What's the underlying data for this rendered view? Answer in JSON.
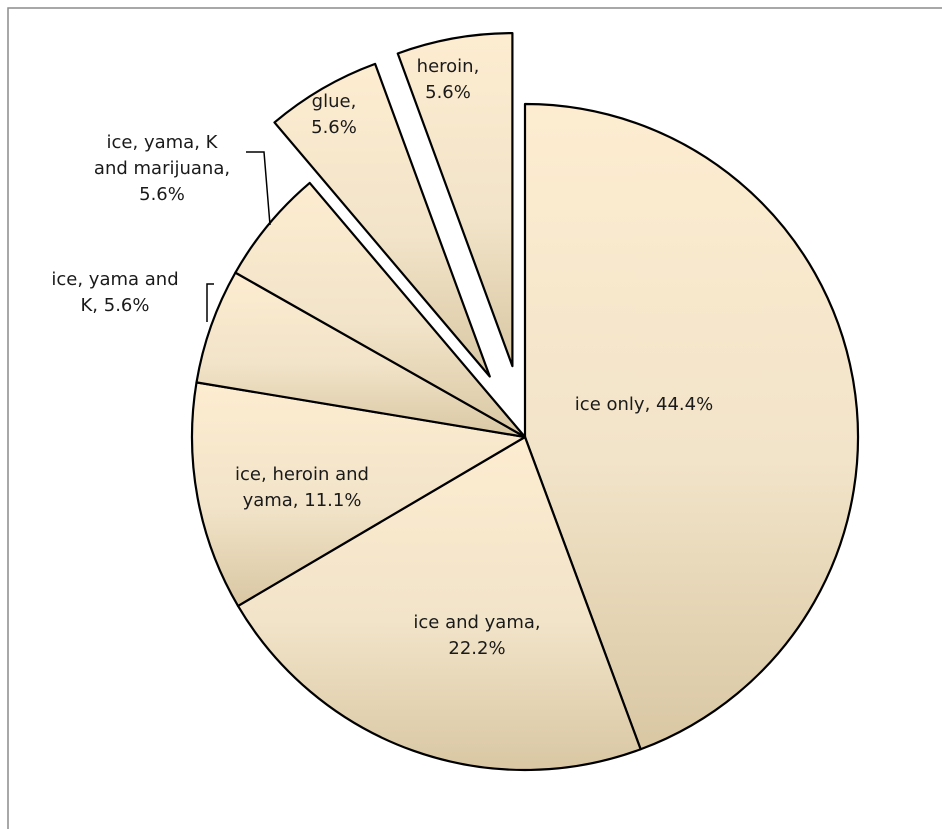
{
  "chart_data": {
    "type": "pie",
    "slices": [
      {
        "label": "ice only",
        "value": 44.4,
        "display": "44.4%",
        "label_lines": [
          "ice only, 44.4%"
        ]
      },
      {
        "label": "ice and yama",
        "value": 22.2,
        "display": "22.2%",
        "label_lines": [
          "ice and yama,",
          "22.2%"
        ]
      },
      {
        "label": "ice, heroin and yama",
        "value": 11.1,
        "display": "11.1%",
        "label_lines": [
          "ice, heroin and",
          "yama, 11.1%"
        ]
      },
      {
        "label": "ice, yama and K",
        "value": 5.6,
        "display": "5.6%",
        "label_lines": [
          "ice, yama and",
          "K, 5.6%"
        ]
      },
      {
        "label": "ice, yama, K and marijuana",
        "value": 5.6,
        "display": "5.6%",
        "label_lines": [
          "ice, yama, K",
          "and marijuana,",
          "5.6%"
        ]
      },
      {
        "label": "glue",
        "value": 5.6,
        "display": "5.6%",
        "label_lines": [
          "glue,",
          "5.6%"
        ],
        "exploded": true
      },
      {
        "label": "heroin",
        "value": 5.6,
        "display": "5.6%",
        "label_lines": [
          "heroin,",
          "5.6%"
        ],
        "exploded": true
      }
    ],
    "start": "12 o'clock",
    "direction": "clockwise",
    "legend": "none",
    "colors": {
      "fill_light": "#fdecd0",
      "fill_dark": "#d9c7a3",
      "stroke": "#000000",
      "frame": "#8c8c8c"
    }
  }
}
